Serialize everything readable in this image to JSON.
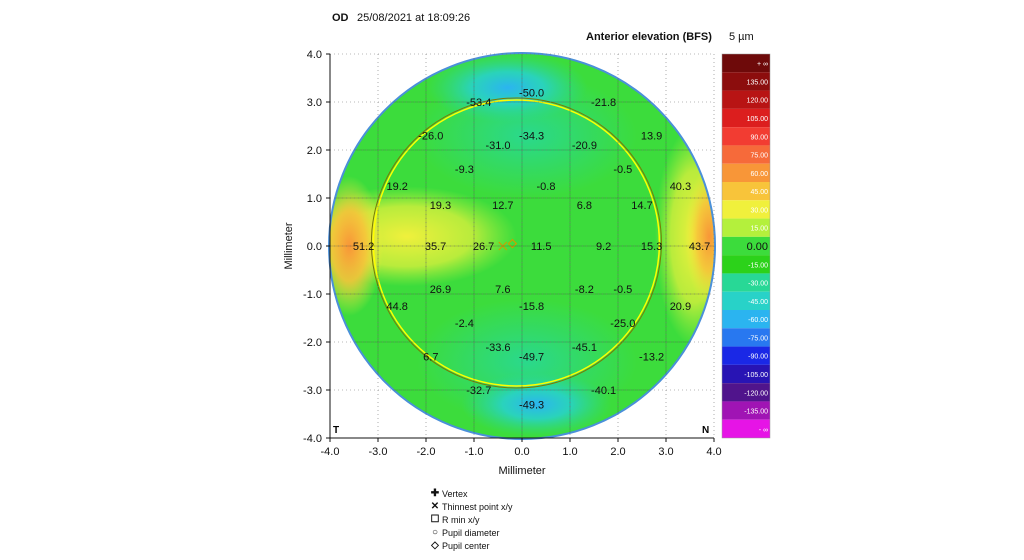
{
  "header": {
    "eye": "OD",
    "datetime": "25/08/2021 at 18:09:26",
    "map_title": "Anterior elevation (BFS)",
    "step": "5 µm"
  },
  "corner_labels": {
    "left": "T",
    "right": "N"
  },
  "legend_items": [
    {
      "symbol": "✚",
      "label": "Vertex"
    },
    {
      "symbol": "✕",
      "label": "Thinnest point x/y"
    },
    {
      "symbol": "☐",
      "label": "R min x/y"
    },
    {
      "symbol": "○",
      "label": "Pupil diameter"
    },
    {
      "symbol": "◇",
      "label": "Pupil center"
    }
  ],
  "colors": {
    "outline": "#4a90d9",
    "ring": "#ffff00",
    "marker": "#c8a000"
  },
  "chart_data": {
    "type": "heatmap",
    "title": "Anterior elevation (BFS)",
    "xlabel": "Millimeter",
    "ylabel": "Millimeter",
    "xlim": [
      -4.0,
      4.0
    ],
    "ylim": [
      -4.0,
      4.0
    ],
    "xticks": [
      "-4.0",
      "-3.0",
      "-2.0",
      "-1.0",
      "0.0",
      "1.0",
      "2.0",
      "3.0",
      "4.0"
    ],
    "yticks": [
      "4.0",
      "3.0",
      "2.0",
      "1.0",
      "0.0",
      "-1.0",
      "-2.0",
      "-3.0",
      "-4.0"
    ],
    "grid": true,
    "pupil_diameter_mm": 6.0,
    "pupil_center": [
      -0.2,
      0.05
    ],
    "thinnest_point": [
      -0.4,
      0.0
    ],
    "values": [
      {
        "x": 0.2,
        "y": 3.2,
        "label": "-50.0"
      },
      {
        "x": -0.9,
        "y": 3.0,
        "label": "-53.4"
      },
      {
        "x": 1.7,
        "y": 3.0,
        "label": "-21.8"
      },
      {
        "x": -1.9,
        "y": 2.3,
        "label": "-26.0"
      },
      {
        "x": 0.2,
        "y": 2.3,
        "label": "-34.3"
      },
      {
        "x": -0.5,
        "y": 2.1,
        "label": "-31.0"
      },
      {
        "x": 1.3,
        "y": 2.1,
        "label": "-20.9"
      },
      {
        "x": 2.7,
        "y": 2.3,
        "label": "13.9"
      },
      {
        "x": -1.2,
        "y": 1.6,
        "label": "-9.3"
      },
      {
        "x": 2.1,
        "y": 1.6,
        "label": "-0.5"
      },
      {
        "x": 0.5,
        "y": 1.25,
        "label": "-0.8"
      },
      {
        "x": -2.6,
        "y": 1.25,
        "label": "19.2"
      },
      {
        "x": 3.3,
        "y": 1.25,
        "label": "40.3"
      },
      {
        "x": -1.7,
        "y": 0.85,
        "label": "19.3"
      },
      {
        "x": -0.4,
        "y": 0.85,
        "label": "12.7"
      },
      {
        "x": 1.3,
        "y": 0.85,
        "label": "6.8"
      },
      {
        "x": 2.5,
        "y": 0.85,
        "label": "14.7"
      },
      {
        "x": -3.3,
        "y": 0.0,
        "label": "51.2"
      },
      {
        "x": -1.8,
        "y": 0.0,
        "label": "35.7"
      },
      {
        "x": -0.8,
        "y": 0.0,
        "label": "26.7"
      },
      {
        "x": 0.4,
        "y": 0.0,
        "label": "11.5"
      },
      {
        "x": 1.7,
        "y": 0.0,
        "label": "9.2"
      },
      {
        "x": 2.7,
        "y": 0.0,
        "label": "15.3"
      },
      {
        "x": 3.7,
        "y": 0.0,
        "label": "43.7"
      },
      {
        "x": -1.7,
        "y": -0.9,
        "label": "26.9"
      },
      {
        "x": -0.4,
        "y": -0.9,
        "label": "7.6"
      },
      {
        "x": 1.3,
        "y": -0.9,
        "label": "-8.2"
      },
      {
        "x": 2.1,
        "y": -0.9,
        "label": "-0.5"
      },
      {
        "x": 0.2,
        "y": -1.25,
        "label": "-15.8"
      },
      {
        "x": -2.6,
        "y": -1.25,
        "label": "44.8"
      },
      {
        "x": 3.3,
        "y": -1.25,
        "label": "20.9"
      },
      {
        "x": -1.2,
        "y": -1.6,
        "label": "-2.4"
      },
      {
        "x": 2.1,
        "y": -1.6,
        "label": "-25.0"
      },
      {
        "x": -0.5,
        "y": -2.1,
        "label": "-33.6"
      },
      {
        "x": 1.3,
        "y": -2.1,
        "label": "-45.1"
      },
      {
        "x": 0.2,
        "y": -2.3,
        "label": "-49.7"
      },
      {
        "x": -1.9,
        "y": -2.3,
        "label": "6.7"
      },
      {
        "x": 2.7,
        "y": -2.3,
        "label": "-13.2"
      },
      {
        "x": -0.9,
        "y": -3.0,
        "label": "-32.7"
      },
      {
        "x": 1.7,
        "y": -3.0,
        "label": "-40.1"
      },
      {
        "x": 0.2,
        "y": -3.3,
        "label": "-49.3"
      }
    ],
    "scale": [
      {
        "label": "+ ∞",
        "color": "#6e0a0a"
      },
      {
        "label": "135.00",
        "color": "#8c0d0d"
      },
      {
        "label": "120.00",
        "color": "#b81414"
      },
      {
        "label": "105.00",
        "color": "#dc1e1e"
      },
      {
        "label": "90.00",
        "color": "#f23c32"
      },
      {
        "label": "75.00",
        "color": "#f66a3a"
      },
      {
        "label": "60.00",
        "color": "#f89638"
      },
      {
        "label": "45.00",
        "color": "#f8c43a"
      },
      {
        "label": "30.00",
        "color": "#f0f03c"
      },
      {
        "label": "15.00",
        "color": "#b4f03c"
      },
      {
        "label": "0.00",
        "color": "#3cdc3c"
      },
      {
        "label": "-15.00",
        "color": "#2cd21a"
      },
      {
        "label": "-30.00",
        "color": "#28d896"
      },
      {
        "label": "-45.00",
        "color": "#28d2c8"
      },
      {
        "label": "-60.00",
        "color": "#2bb4f0"
      },
      {
        "label": "-75.00",
        "color": "#2878f0"
      },
      {
        "label": "-90.00",
        "color": "#1a28e6"
      },
      {
        "label": "-105.00",
        "color": "#2814b4"
      },
      {
        "label": "-120.00",
        "color": "#50148c"
      },
      {
        "label": "-135.00",
        "color": "#a014b4"
      },
      {
        "label": "- ∞",
        "color": "#e614e6"
      }
    ]
  }
}
